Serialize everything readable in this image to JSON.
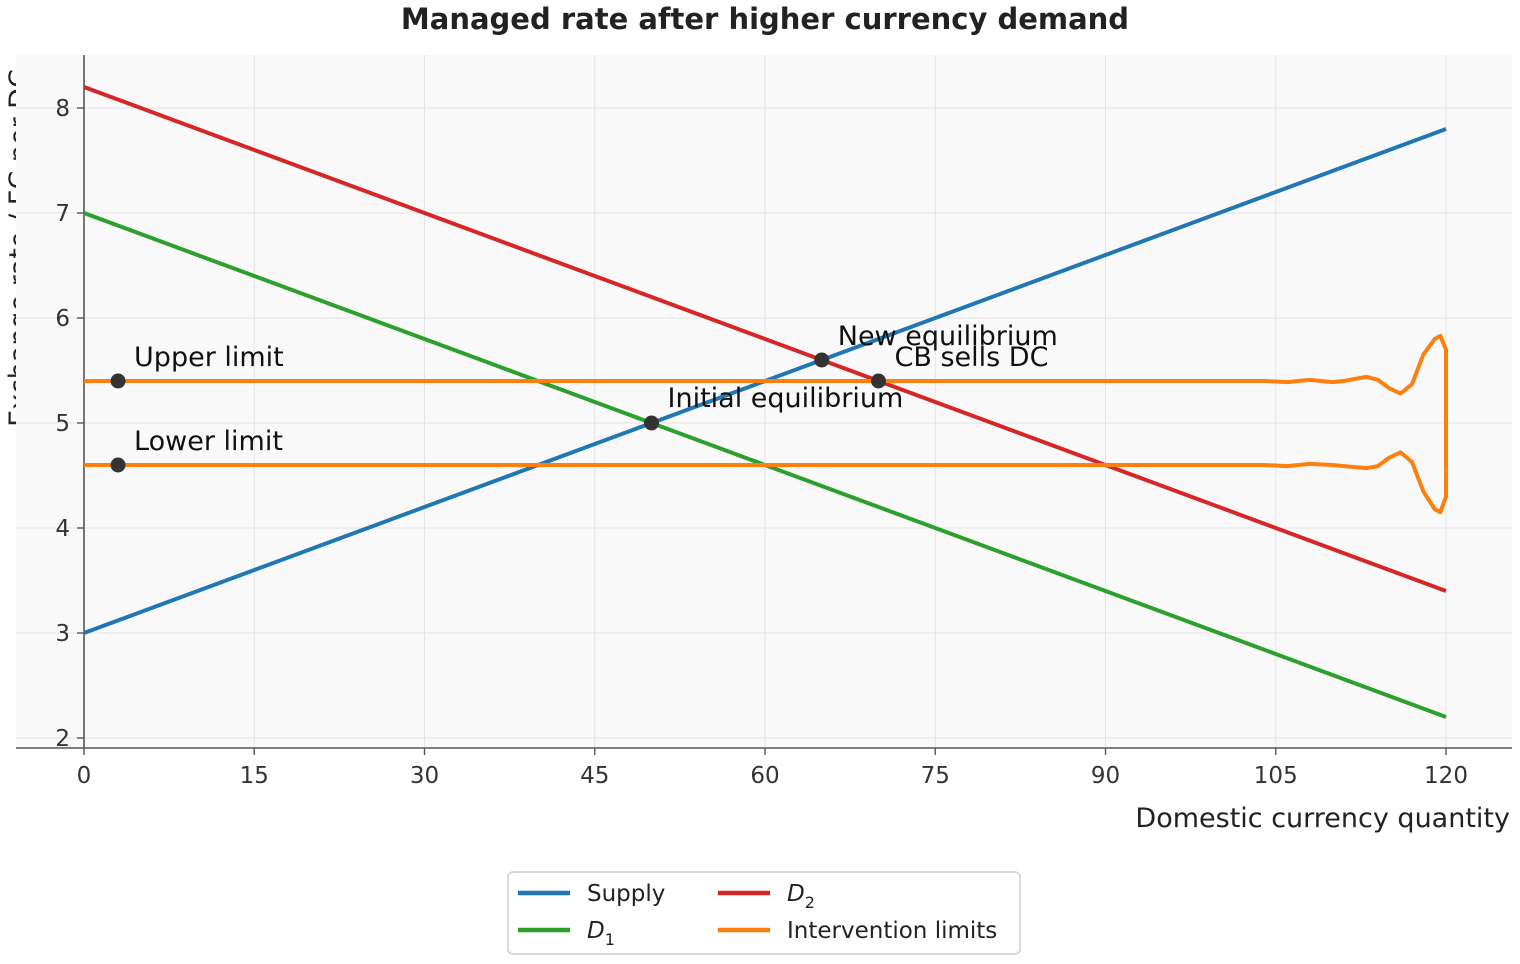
{
  "chart_data": {
    "type": "line",
    "title": "Managed rate after higher currency demand",
    "xlabel": "Domestic currency quantity",
    "ylabel": "Exchange rate / FC per DC",
    "xlim": [
      0,
      120
    ],
    "ylim": [
      2,
      8.5
    ],
    "xticks": [
      0,
      15,
      30,
      45,
      60,
      75,
      90,
      105,
      120
    ],
    "yticks": [
      2,
      3,
      4,
      5,
      6,
      7,
      8
    ],
    "grid": true,
    "legend_position": "bottom-center",
    "colors": {
      "supply": "#1f77b4",
      "d1": "#2ca02c",
      "d2": "#d62728",
      "limits": "#ff7f0e",
      "points": "#333333",
      "plot_bg": "#f9f9f9",
      "grid": "#e4e4e4",
      "axis": "#555555",
      "text": "#222222"
    },
    "series": [
      {
        "name": "Supply",
        "key": "supply",
        "x": [
          0,
          120
        ],
        "y": [
          3.0,
          7.8
        ]
      },
      {
        "name": "D1",
        "key": "d1",
        "x": [
          0,
          120
        ],
        "y": [
          7.0,
          2.2
        ]
      },
      {
        "name": "D2",
        "key": "d2",
        "x": [
          0,
          120
        ],
        "y": [
          8.2,
          3.4
        ]
      },
      {
        "name": "Intervention limits",
        "key": "limits",
        "upper": {
          "x": [
            0,
            104,
            106,
            108,
            110,
            111,
            112,
            113,
            114,
            115,
            116,
            117,
            118,
            119,
            119.5,
            120,
            120
          ],
          "y": [
            5.4,
            5.4,
            5.39,
            5.41,
            5.39,
            5.4,
            5.42,
            5.44,
            5.41,
            5.33,
            5.28,
            5.37,
            5.65,
            5.8,
            5.83,
            5.7,
            5.5
          ]
        },
        "lower": {
          "x": [
            0,
            104,
            106,
            108,
            110,
            111,
            112,
            113,
            114,
            115,
            116,
            117,
            118,
            119,
            119.5,
            120,
            120
          ],
          "y": [
            4.6,
            4.6,
            4.59,
            4.61,
            4.6,
            4.59,
            4.58,
            4.57,
            4.59,
            4.67,
            4.72,
            4.63,
            4.35,
            4.18,
            4.15,
            4.3,
            4.55
          ]
        },
        "closing_segment_x": 120,
        "closing_segment_y": [
          4.55,
          5.5
        ]
      }
    ],
    "points": [
      {
        "key": "upper-limit",
        "x": 3,
        "y": 5.4,
        "label": "Upper limit"
      },
      {
        "key": "lower-limit",
        "x": 3,
        "y": 4.6,
        "label": "Lower limit"
      },
      {
        "key": "initial-equilibrium",
        "x": 50,
        "y": 5.0,
        "label": "Initial equilibrium"
      },
      {
        "key": "new-equilibrium",
        "x": 65,
        "y": 5.6,
        "label": "New equilibrium"
      },
      {
        "key": "cb-sells-dc",
        "x": 70,
        "y": 5.4,
        "label": "CB sells DC"
      }
    ],
    "legend": [
      {
        "key": "supply",
        "label": "Supply",
        "sub": ""
      },
      {
        "key": "d2",
        "label": "D",
        "sub": "2"
      },
      {
        "key": "d1",
        "label": "D",
        "sub": "1"
      },
      {
        "key": "limits",
        "label": "Intervention limits",
        "sub": ""
      }
    ]
  }
}
